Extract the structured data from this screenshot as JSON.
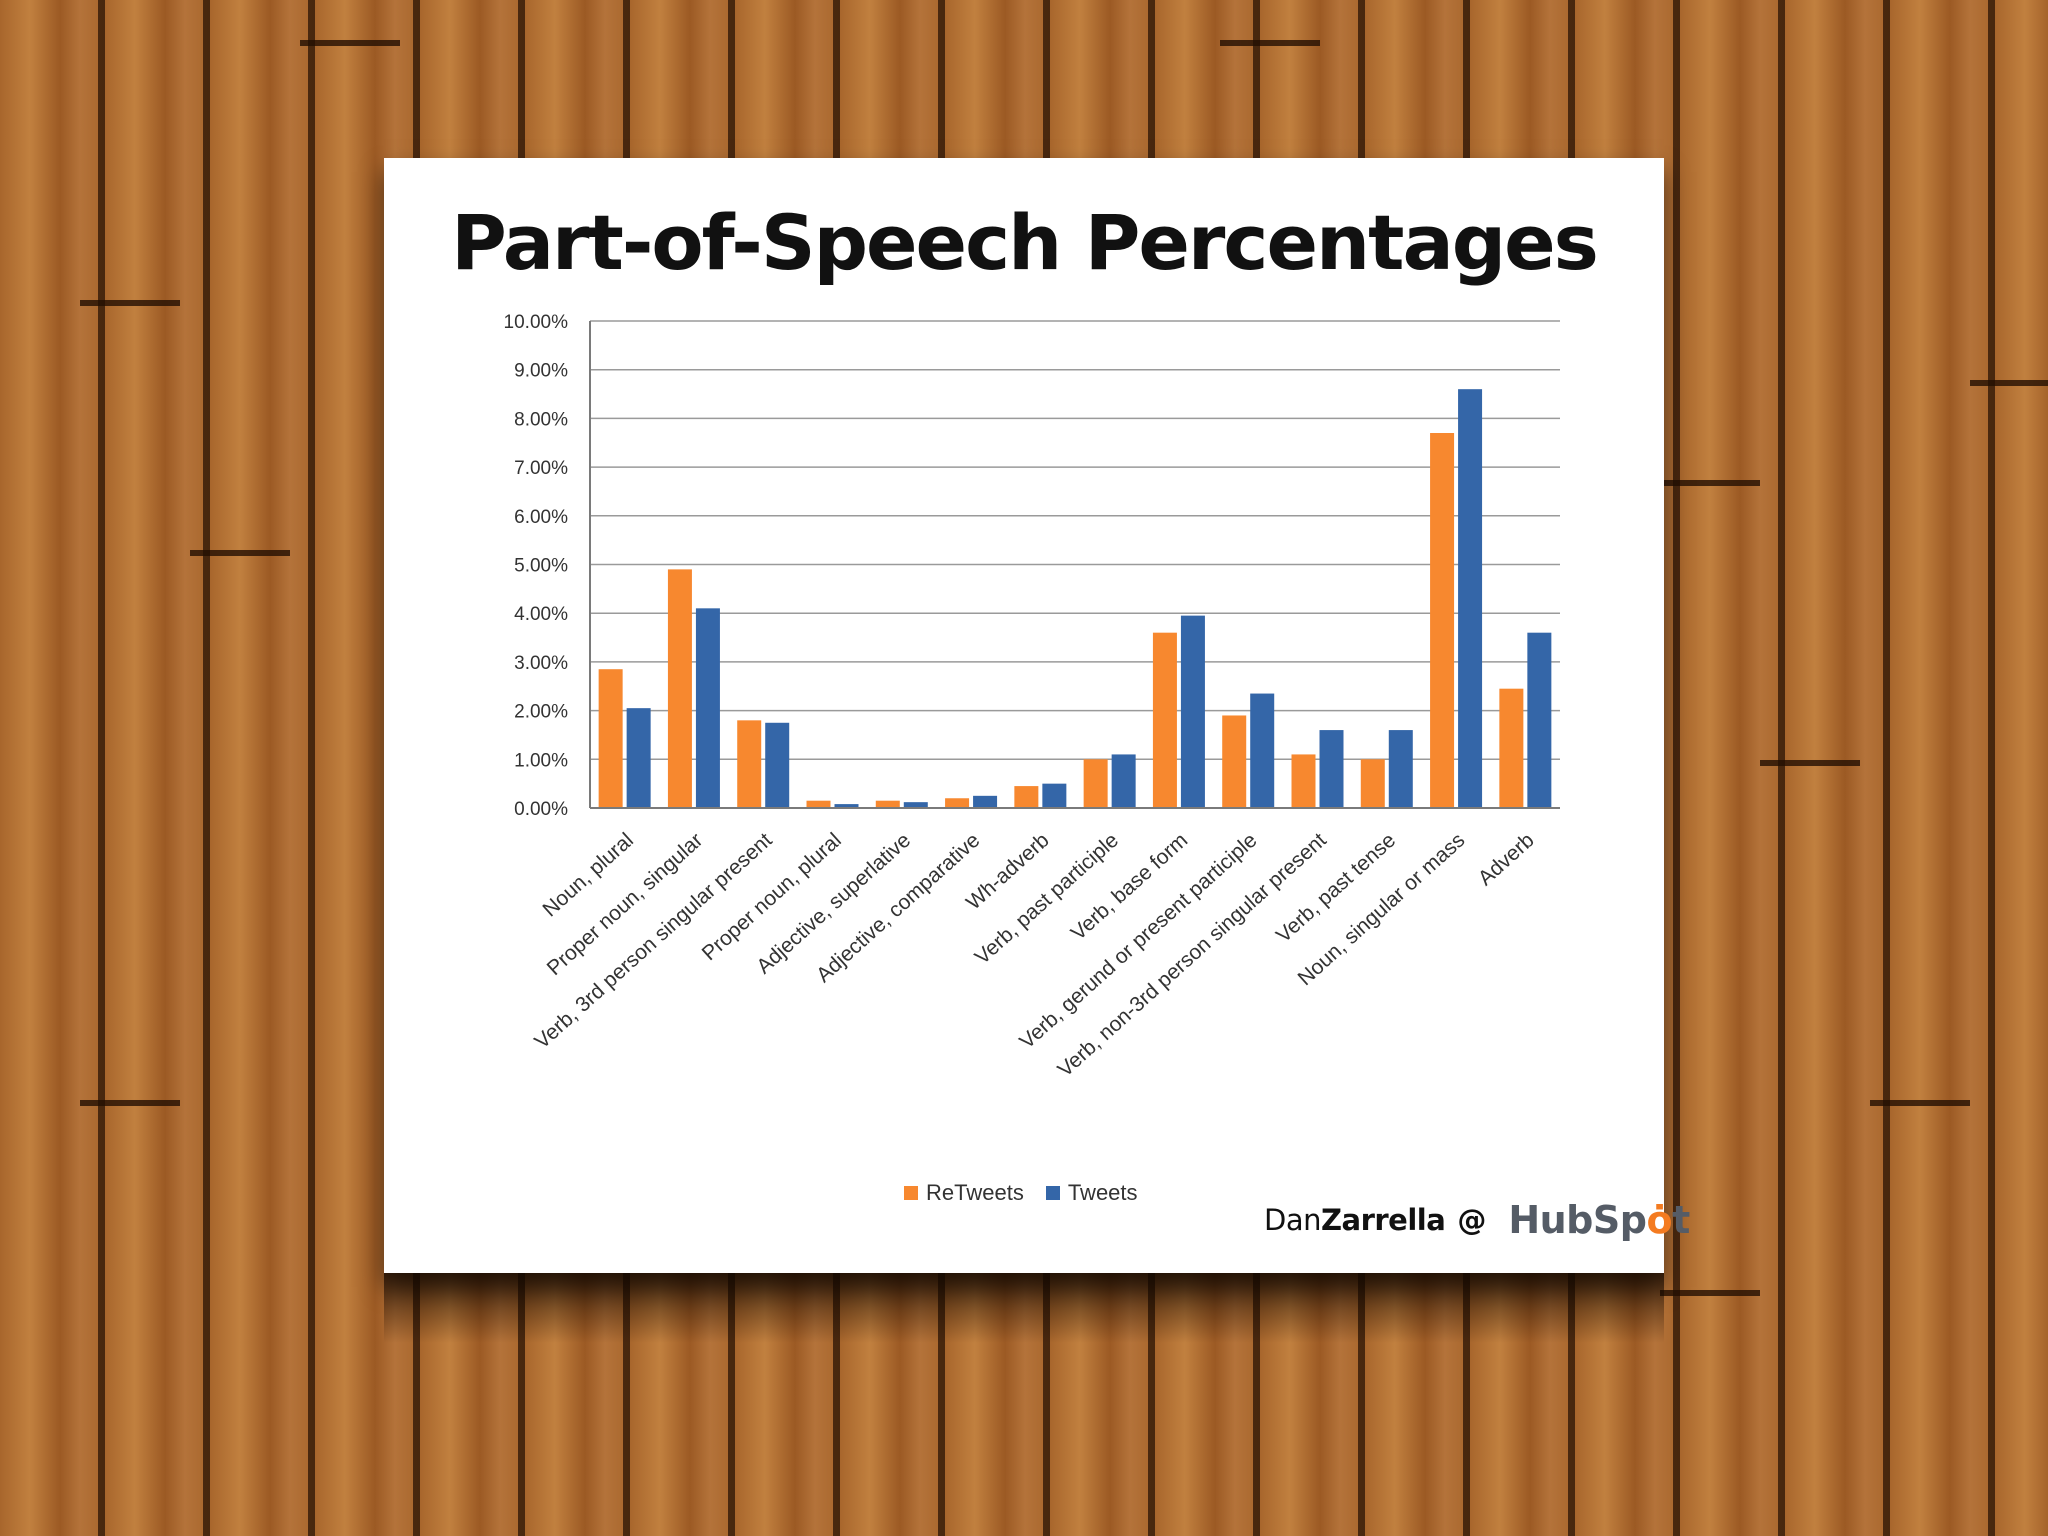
{
  "colors": {
    "retweets": "#f7882f",
    "tweets": "#3466a8",
    "grid": "#9a9a9a",
    "axis": "#7a7a7a",
    "sprocket": "#f47b20"
  },
  "chart_data": {
    "type": "bar",
    "title": "Part-of-Speech Percentages",
    "xlabel": "",
    "ylabel": "",
    "ylim": [
      0,
      10
    ],
    "yticks": [
      "0.00%",
      "1.00%",
      "2.00%",
      "3.00%",
      "4.00%",
      "5.00%",
      "6.00%",
      "7.00%",
      "8.00%",
      "9.00%",
      "10.00%"
    ],
    "grid": true,
    "legend_position": "bottom",
    "categories": [
      "Noun, plural",
      "Proper noun, singular",
      "Verb, 3rd person singular present",
      "Proper noun, plural",
      "Adjective, superlative",
      "Adjective, comparative",
      "Wh-adverb",
      "Verb, past participle",
      "Verb, base form",
      "Verb, gerund or present participle",
      "Verb, non-3rd person singular present",
      "Verb, past tense",
      "Noun, singular or mass",
      "Adverb"
    ],
    "series": [
      {
        "name": "ReTweets",
        "color": "#f7882f",
        "values": [
          2.85,
          4.9,
          1.8,
          0.15,
          0.15,
          0.2,
          0.45,
          1.0,
          3.6,
          1.9,
          1.1,
          1.0,
          7.7,
          2.45
        ]
      },
      {
        "name": "Tweets",
        "color": "#3466a8",
        "values": [
          2.05,
          4.1,
          1.75,
          0.08,
          0.12,
          0.25,
          0.5,
          1.1,
          3.95,
          2.35,
          1.6,
          1.6,
          8.6,
          3.6
        ]
      }
    ]
  },
  "legend": {
    "retweets_label": "ReTweets",
    "tweets_label": "Tweets"
  },
  "branding": {
    "author_first": "Dan",
    "author_last": "Zarrella",
    "at": "@",
    "logo_text_a": "HubSp",
    "logo_text_b": "t"
  }
}
